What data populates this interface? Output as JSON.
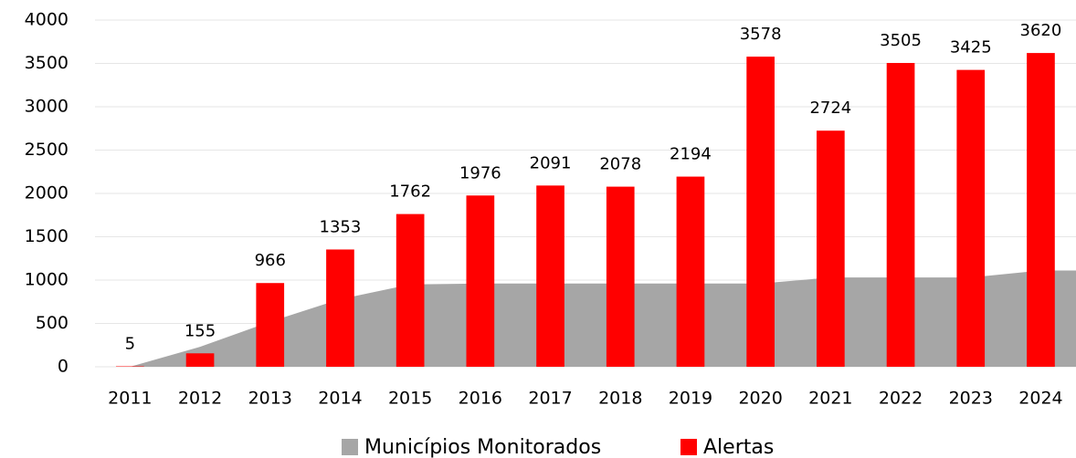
{
  "chart_data": {
    "type": "bar",
    "categories": [
      "2011",
      "2012",
      "2013",
      "2014",
      "2015",
      "2016",
      "2017",
      "2018",
      "2019",
      "2020",
      "2021",
      "2022",
      "2023",
      "2024"
    ],
    "series": [
      {
        "name": "Municípios Monitorados",
        "type": "area",
        "color": "#a6a6a6",
        "values": [
          0,
          230,
          520,
          780,
          950,
          960,
          960,
          960,
          960,
          960,
          1030,
          1030,
          1030,
          1110
        ]
      },
      {
        "name": "Alertas",
        "type": "bar",
        "color": "#ff0000",
        "values": [
          5,
          155,
          966,
          1353,
          1762,
          1976,
          2091,
          2078,
          2194,
          3578,
          2724,
          3505,
          3425,
          3620
        ]
      }
    ],
    "ylim": [
      0,
      4000
    ],
    "yticks": [
      0,
      500,
      1000,
      1500,
      2000,
      2500,
      3000,
      3500,
      4000
    ],
    "grid": true,
    "legend": "bottom"
  }
}
